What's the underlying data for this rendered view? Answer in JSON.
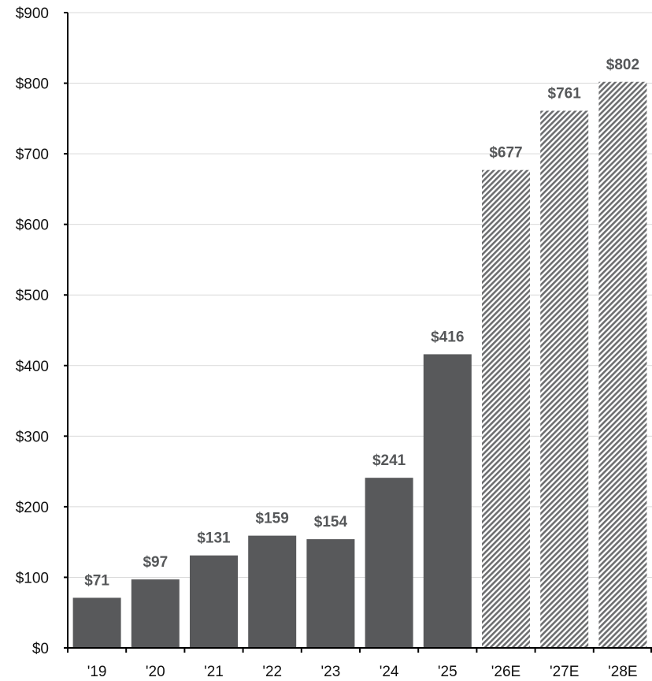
{
  "chart_data": {
    "type": "bar",
    "title": "",
    "xlabel": "",
    "ylabel": "",
    "categories": [
      "'19",
      "'20",
      "'21",
      "'22",
      "'23",
      "'24",
      "'25",
      "'26E",
      "'27E",
      "'28E"
    ],
    "values": [
      71,
      97,
      131,
      159,
      154,
      241,
      416,
      677,
      761,
      802
    ],
    "value_labels": [
      "$71",
      "$97",
      "$131",
      "$159",
      "$154",
      "$241",
      "$416",
      "$677",
      "$761",
      "$802"
    ],
    "estimated": [
      false,
      false,
      false,
      false,
      false,
      false,
      false,
      true,
      true,
      true
    ],
    "ylim": [
      0,
      900
    ],
    "yticks": [
      0,
      100,
      200,
      300,
      400,
      500,
      600,
      700,
      800,
      900
    ],
    "ytick_labels": [
      "$0",
      "$100",
      "$200",
      "$300",
      "$400",
      "$500",
      "$600",
      "$700",
      "$800",
      "$900"
    ],
    "grid": true,
    "legend": "none",
    "colors": {
      "actual": "#58595b",
      "estimate_hatch": "#6d6e70",
      "grid": "#d9d9d9",
      "label": "#555759"
    }
  }
}
